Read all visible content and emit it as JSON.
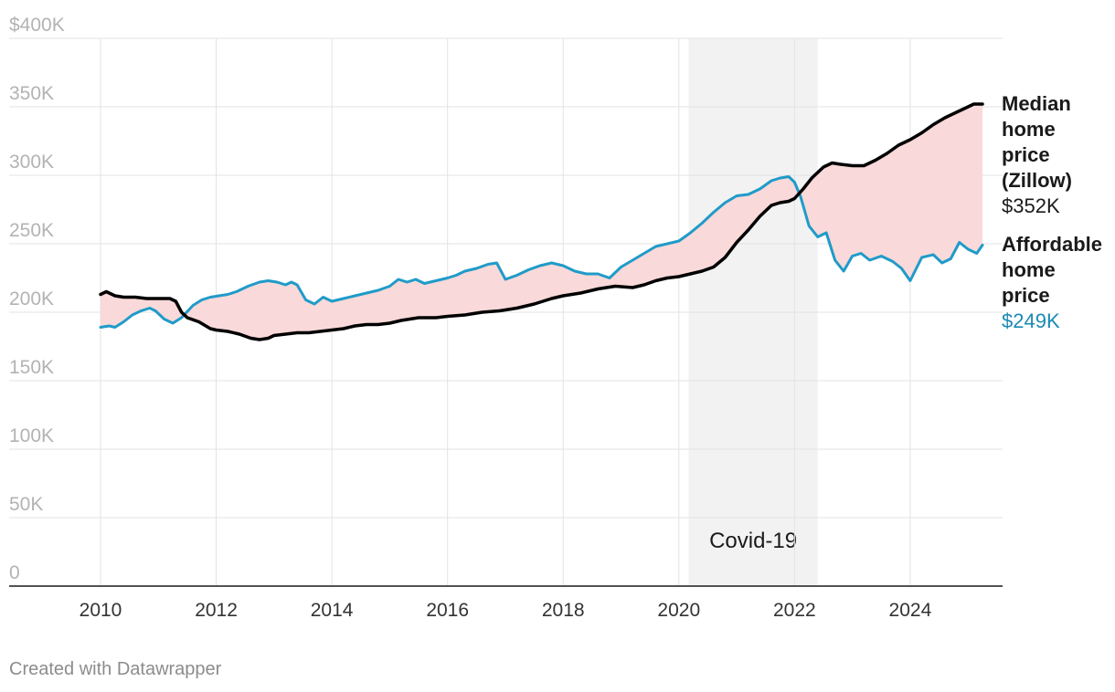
{
  "chart_data": {
    "type": "line",
    "x_unit": "year",
    "xlim": [
      2010,
      2025.25
    ],
    "ylim": [
      0,
      400000
    ],
    "y_ticks": [
      {
        "value": 400000,
        "label": "$400K"
      },
      {
        "value": 350000,
        "label": "350K"
      },
      {
        "value": 300000,
        "label": "300K"
      },
      {
        "value": 250000,
        "label": "250K"
      },
      {
        "value": 200000,
        "label": "200K"
      },
      {
        "value": 150000,
        "label": "150K"
      },
      {
        "value": 100000,
        "label": "100K"
      },
      {
        "value": 50000,
        "label": "50K"
      },
      {
        "value": 0,
        "label": "0"
      }
    ],
    "x_ticks": [
      {
        "value": 2010,
        "label": "2010"
      },
      {
        "value": 2012,
        "label": "2012"
      },
      {
        "value": 2014,
        "label": "2014"
      },
      {
        "value": 2016,
        "label": "2016"
      },
      {
        "value": 2018,
        "label": "2018"
      },
      {
        "value": 2020,
        "label": "2020"
      },
      {
        "value": 2022,
        "label": "2022"
      },
      {
        "value": 2024,
        "label": "2024"
      }
    ],
    "grid": true,
    "gap_fill_color": "#f9d9d9",
    "shaded_region": {
      "label": "Covid-19",
      "x_start": 2020.17,
      "x_end": 2022.4,
      "color": "#f2f2f2"
    },
    "series": [
      {
        "name": "Median home price (Zillow)",
        "end_label_lines": [
          "Median",
          "home",
          "price",
          "(Zillow)"
        ],
        "end_value": "$352K",
        "color": "#000000",
        "label_value_color": "#1a1a1a",
        "x": [
          2010,
          2010.1,
          2010.25,
          2010.4,
          2010.6,
          2010.8,
          2011,
          2011.2,
          2011.3,
          2011.4,
          2011.5,
          2011.7,
          2011.9,
          2012,
          2012.2,
          2012.4,
          2012.6,
          2012.75,
          2012.9,
          2013,
          2013.2,
          2013.4,
          2013.6,
          2013.8,
          2014,
          2014.2,
          2014.4,
          2014.6,
          2014.8,
          2015,
          2015.2,
          2015.5,
          2015.8,
          2016,
          2016.3,
          2016.6,
          2016.9,
          2017.2,
          2017.5,
          2017.8,
          2018,
          2018.3,
          2018.6,
          2018.9,
          2019.2,
          2019.4,
          2019.6,
          2019.8,
          2020,
          2020.2,
          2020.4,
          2020.6,
          2020.8,
          2021,
          2021.2,
          2021.4,
          2021.6,
          2021.75,
          2021.9,
          2022,
          2022.15,
          2022.3,
          2022.5,
          2022.65,
          2022.8,
          2023,
          2023.2,
          2023.4,
          2023.6,
          2023.8,
          2024,
          2024.2,
          2024.4,
          2024.6,
          2024.8,
          2025,
          2025.1,
          2025.25
        ],
        "y": [
          213000,
          215000,
          212000,
          211000,
          211000,
          210000,
          210000,
          210000,
          208000,
          200000,
          196000,
          193000,
          188000,
          187000,
          186000,
          184000,
          181000,
          180000,
          181000,
          183000,
          184000,
          185000,
          185000,
          186000,
          187000,
          188000,
          190000,
          191000,
          191000,
          192000,
          194000,
          196000,
          196000,
          197000,
          198000,
          200000,
          201000,
          203000,
          206000,
          210000,
          212000,
          214000,
          217000,
          219000,
          218000,
          220000,
          223000,
          225000,
          226000,
          228000,
          230000,
          233000,
          240000,
          251000,
          260000,
          270000,
          278000,
          280000,
          281000,
          283000,
          290000,
          298000,
          306000,
          309000,
          308000,
          307000,
          307000,
          311000,
          316000,
          322000,
          326000,
          331000,
          337000,
          342000,
          346000,
          350000,
          352000,
          352000
        ]
      },
      {
        "name": "Affordable home price",
        "end_label_lines": [
          "Affordable",
          "home",
          "price"
        ],
        "end_value": "$249K",
        "color": "#1f9bc9",
        "label_value_color": "#1a8ab3",
        "x": [
          2010,
          2010.15,
          2010.25,
          2010.4,
          2010.55,
          2010.7,
          2010.85,
          2010.95,
          2011.1,
          2011.25,
          2011.4,
          2011.6,
          2011.75,
          2011.9,
          2012.05,
          2012.2,
          2012.35,
          2012.55,
          2012.75,
          2012.9,
          2013.05,
          2013.2,
          2013.3,
          2013.4,
          2013.55,
          2013.7,
          2013.85,
          2014,
          2014.2,
          2014.4,
          2014.6,
          2014.8,
          2015,
          2015.15,
          2015.3,
          2015.45,
          2015.6,
          2015.8,
          2016,
          2016.15,
          2016.3,
          2016.5,
          2016.7,
          2016.85,
          2017,
          2017.2,
          2017.4,
          2017.6,
          2017.8,
          2018,
          2018.2,
          2018.4,
          2018.6,
          2018.8,
          2019,
          2019.2,
          2019.4,
          2019.6,
          2019.8,
          2020,
          2020.2,
          2020.4,
          2020.6,
          2020.8,
          2021,
          2021.2,
          2021.4,
          2021.6,
          2021.75,
          2021.9,
          2022,
          2022.1,
          2022.25,
          2022.4,
          2022.55,
          2022.7,
          2022.85,
          2023,
          2023.15,
          2023.3,
          2023.5,
          2023.7,
          2023.85,
          2024,
          2024.2,
          2024.4,
          2024.55,
          2024.7,
          2024.85,
          2025,
          2025.15,
          2025.25
        ],
        "y": [
          189000,
          190000,
          189000,
          193000,
          198000,
          201000,
          203000,
          201000,
          195000,
          192000,
          196000,
          205000,
          209000,
          211000,
          212000,
          213000,
          215000,
          219000,
          222000,
          223000,
          222000,
          220000,
          222000,
          220000,
          209000,
          206000,
          211000,
          208000,
          210000,
          212000,
          214000,
          216000,
          219000,
          224000,
          222000,
          224000,
          221000,
          223000,
          225000,
          227000,
          230000,
          232000,
          235000,
          236000,
          224000,
          227000,
          231000,
          234000,
          236000,
          234000,
          230000,
          228000,
          228000,
          225000,
          233000,
          238000,
          243000,
          248000,
          250000,
          252000,
          258000,
          265000,
          273000,
          280000,
          285000,
          286000,
          290000,
          296000,
          298000,
          299000,
          295000,
          285000,
          263000,
          255000,
          258000,
          238000,
          230000,
          241000,
          243000,
          238000,
          241000,
          237000,
          232000,
          223000,
          240000,
          242000,
          236000,
          239000,
          251000,
          246000,
          243000,
          249000
        ]
      }
    ]
  },
  "footer": {
    "credit": "Created with Datawrapper"
  }
}
